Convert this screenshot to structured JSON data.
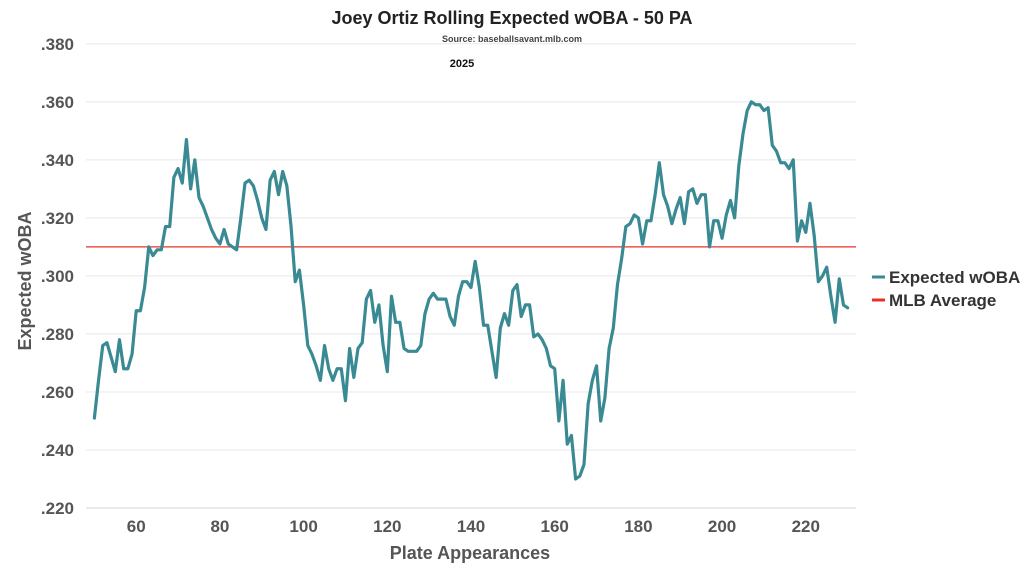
{
  "chart_data": {
    "type": "line",
    "title": "Joey Ortiz Rolling Expected wOBA - 50 PA",
    "subtitle": "Source: baseballsavant.mlb.com",
    "annotation": "2025",
    "xlabel": "Plate Appearances",
    "ylabel": "Expected wOBA",
    "xlim": [
      48,
      232
    ],
    "ylim": [
      0.22,
      0.382
    ],
    "x_ticks": [
      60,
      80,
      100,
      120,
      140,
      160,
      180,
      200,
      220
    ],
    "x_tick_labels": [
      "60",
      "80",
      "100",
      "120",
      "140",
      "160",
      "180",
      "200",
      "220"
    ],
    "y_ticks": [
      0.22,
      0.24,
      0.26,
      0.28,
      0.3,
      0.32,
      0.34,
      0.36,
      0.38
    ],
    "y_tick_labels": [
      ".220",
      ".240",
      ".260",
      ".280",
      ".300",
      ".320",
      ".340",
      ".360",
      ".380"
    ],
    "grid": true,
    "legend_position": "right",
    "reference_line": {
      "name": "MLB Average",
      "y": 0.31,
      "color": "#e8302a"
    },
    "series": [
      {
        "name": "Expected wOBA",
        "color": "#3a8a94",
        "points": [
          [
            50,
            0.251
          ],
          [
            51,
            0.264
          ],
          [
            52,
            0.276
          ],
          [
            53,
            0.277
          ],
          [
            54,
            0.272
          ],
          [
            55,
            0.267
          ],
          [
            56,
            0.278
          ],
          [
            57,
            0.268
          ],
          [
            58,
            0.268
          ],
          [
            59,
            0.273
          ],
          [
            60,
            0.288
          ],
          [
            61,
            0.288
          ],
          [
            62,
            0.296
          ],
          [
            63,
            0.31
          ],
          [
            64,
            0.307
          ],
          [
            65,
            0.309
          ],
          [
            66,
            0.309
          ],
          [
            67,
            0.317
          ],
          [
            68,
            0.317
          ],
          [
            69,
            0.334
          ],
          [
            70,
            0.337
          ],
          [
            71,
            0.332
          ],
          [
            72,
            0.347
          ],
          [
            73,
            0.33
          ],
          [
            74,
            0.34
          ],
          [
            75,
            0.327
          ],
          [
            76,
            0.324
          ],
          [
            77,
            0.32
          ],
          [
            78,
            0.316
          ],
          [
            79,
            0.313
          ],
          [
            80,
            0.311
          ],
          [
            81,
            0.316
          ],
          [
            82,
            0.311
          ],
          [
            83,
            0.31
          ],
          [
            84,
            0.309
          ],
          [
            85,
            0.32
          ],
          [
            86,
            0.332
          ],
          [
            87,
            0.333
          ],
          [
            88,
            0.331
          ],
          [
            89,
            0.326
          ],
          [
            90,
            0.32
          ],
          [
            91,
            0.316
          ],
          [
            92,
            0.333
          ],
          [
            93,
            0.336
          ],
          [
            94,
            0.328
          ],
          [
            95,
            0.336
          ],
          [
            96,
            0.331
          ],
          [
            97,
            0.317
          ],
          [
            98,
            0.298
          ],
          [
            99,
            0.302
          ],
          [
            100,
            0.29
          ],
          [
            101,
            0.276
          ],
          [
            102,
            0.273
          ],
          [
            103,
            0.269
          ],
          [
            104,
            0.264
          ],
          [
            105,
            0.276
          ],
          [
            106,
            0.268
          ],
          [
            107,
            0.264
          ],
          [
            108,
            0.268
          ],
          [
            109,
            0.268
          ],
          [
            110,
            0.257
          ],
          [
            111,
            0.275
          ],
          [
            112,
            0.265
          ],
          [
            113,
            0.275
          ],
          [
            114,
            0.277
          ],
          [
            115,
            0.292
          ],
          [
            116,
            0.295
          ],
          [
            117,
            0.284
          ],
          [
            118,
            0.29
          ],
          [
            119,
            0.276
          ],
          [
            120,
            0.267
          ],
          [
            121,
            0.293
          ],
          [
            122,
            0.284
          ],
          [
            123,
            0.284
          ],
          [
            124,
            0.275
          ],
          [
            125,
            0.274
          ],
          [
            126,
            0.274
          ],
          [
            127,
            0.274
          ],
          [
            128,
            0.276
          ],
          [
            129,
            0.287
          ],
          [
            130,
            0.292
          ],
          [
            131,
            0.294
          ],
          [
            132,
            0.292
          ],
          [
            133,
            0.292
          ],
          [
            134,
            0.292
          ],
          [
            135,
            0.286
          ],
          [
            136,
            0.283
          ],
          [
            137,
            0.293
          ],
          [
            138,
            0.298
          ],
          [
            139,
            0.298
          ],
          [
            140,
            0.296
          ],
          [
            141,
            0.305
          ],
          [
            142,
            0.296
          ],
          [
            143,
            0.283
          ],
          [
            144,
            0.283
          ],
          [
            145,
            0.274
          ],
          [
            146,
            0.265
          ],
          [
            147,
            0.282
          ],
          [
            148,
            0.287
          ],
          [
            149,
            0.283
          ],
          [
            150,
            0.295
          ],
          [
            151,
            0.297
          ],
          [
            152,
            0.286
          ],
          [
            153,
            0.29
          ],
          [
            154,
            0.29
          ],
          [
            155,
            0.279
          ],
          [
            156,
            0.28
          ],
          [
            157,
            0.278
          ],
          [
            158,
            0.275
          ],
          [
            159,
            0.269
          ],
          [
            160,
            0.268
          ],
          [
            161,
            0.25
          ],
          [
            162,
            0.264
          ],
          [
            163,
            0.242
          ],
          [
            164,
            0.245
          ],
          [
            165,
            0.23
          ],
          [
            166,
            0.231
          ],
          [
            167,
            0.235
          ],
          [
            168,
            0.256
          ],
          [
            169,
            0.264
          ],
          [
            170,
            0.269
          ],
          [
            171,
            0.25
          ],
          [
            172,
            0.258
          ],
          [
            173,
            0.275
          ],
          [
            174,
            0.282
          ],
          [
            175,
            0.297
          ],
          [
            176,
            0.306
          ],
          [
            177,
            0.317
          ],
          [
            178,
            0.318
          ],
          [
            179,
            0.321
          ],
          [
            180,
            0.32
          ],
          [
            181,
            0.311
          ],
          [
            182,
            0.319
          ],
          [
            183,
            0.319
          ],
          [
            184,
            0.328
          ],
          [
            185,
            0.339
          ],
          [
            186,
            0.328
          ],
          [
            187,
            0.324
          ],
          [
            188,
            0.318
          ],
          [
            189,
            0.323
          ],
          [
            190,
            0.327
          ],
          [
            191,
            0.318
          ],
          [
            192,
            0.329
          ],
          [
            193,
            0.33
          ],
          [
            194,
            0.325
          ],
          [
            195,
            0.328
          ],
          [
            196,
            0.328
          ],
          [
            197,
            0.31
          ],
          [
            198,
            0.319
          ],
          [
            199,
            0.319
          ],
          [
            200,
            0.313
          ],
          [
            201,
            0.321
          ],
          [
            202,
            0.326
          ],
          [
            203,
            0.32
          ],
          [
            204,
            0.338
          ],
          [
            205,
            0.349
          ],
          [
            206,
            0.357
          ],
          [
            207,
            0.36
          ],
          [
            208,
            0.359
          ],
          [
            209,
            0.359
          ],
          [
            210,
            0.357
          ],
          [
            211,
            0.358
          ],
          [
            212,
            0.345
          ],
          [
            213,
            0.343
          ],
          [
            214,
            0.339
          ],
          [
            215,
            0.339
          ],
          [
            216,
            0.337
          ],
          [
            217,
            0.34
          ],
          [
            218,
            0.312
          ],
          [
            219,
            0.319
          ],
          [
            220,
            0.315
          ],
          [
            221,
            0.325
          ],
          [
            222,
            0.314
          ],
          [
            223,
            0.298
          ],
          [
            224,
            0.3
          ],
          [
            225,
            0.303
          ],
          [
            226,
            0.293
          ],
          [
            227,
            0.284
          ],
          [
            228,
            0.299
          ],
          [
            229,
            0.29
          ],
          [
            230,
            0.289
          ]
        ]
      }
    ]
  }
}
